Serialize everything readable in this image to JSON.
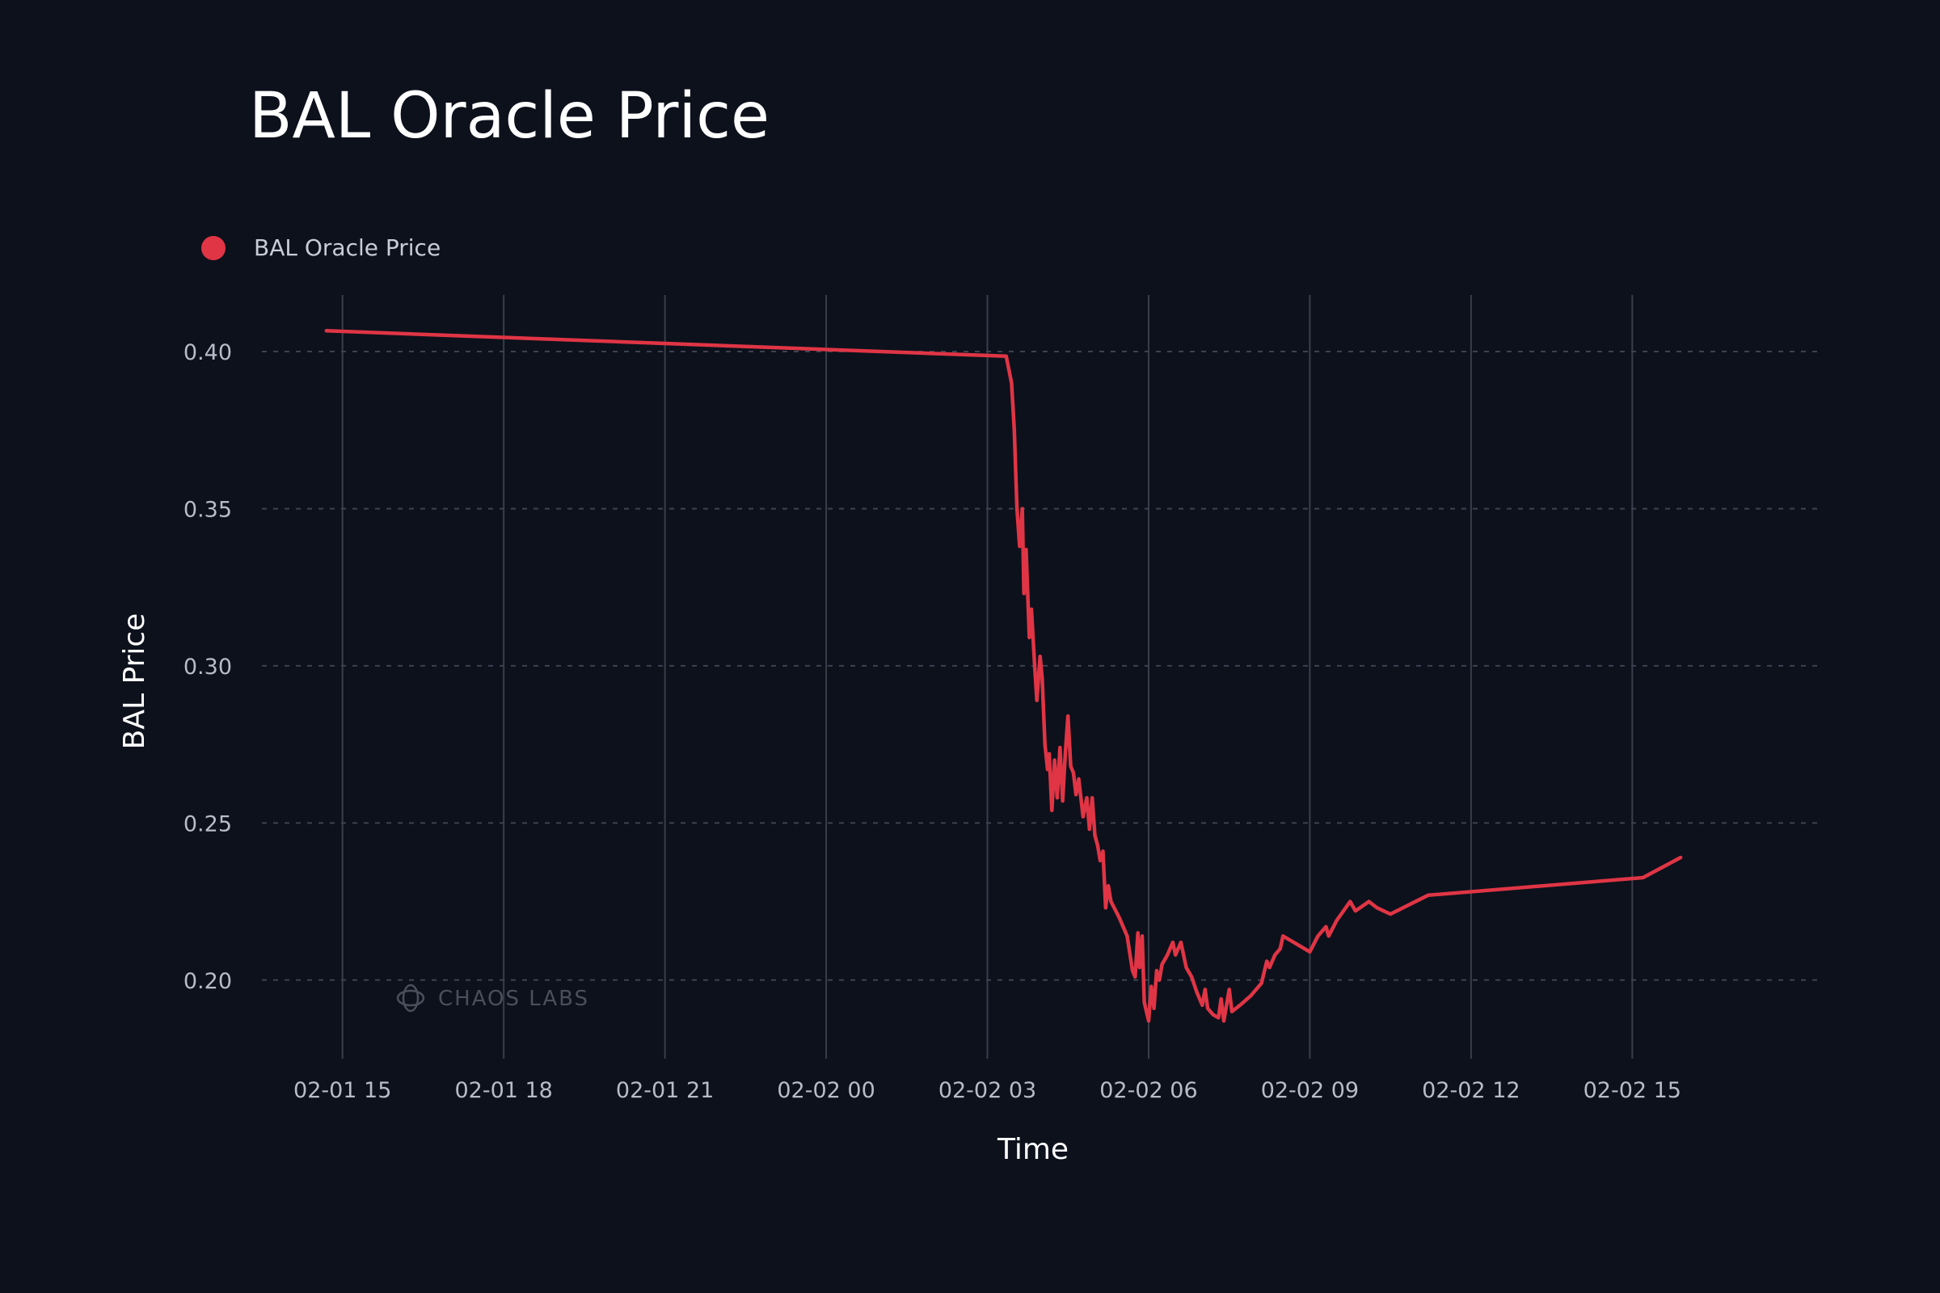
{
  "chart_data": {
    "type": "line",
    "title": "BAL Oracle Price",
    "xlabel": "Time",
    "ylabel": "BAL Price",
    "legend": {
      "position": "top-left",
      "entries": [
        "BAL Oracle Price"
      ]
    },
    "grid": {
      "x": "solid",
      "y": "dashed"
    },
    "x_unit": "hours since 2025-02-01 00:00",
    "xlim": [
      13.5,
      42.5
    ],
    "ylim": [
      0.175,
      0.418
    ],
    "x_ticks": [
      {
        "value": 15,
        "label": "02-01 15"
      },
      {
        "value": 18,
        "label": "02-01 18"
      },
      {
        "value": 21,
        "label": "02-01 21"
      },
      {
        "value": 24,
        "label": "02-02 00"
      },
      {
        "value": 27,
        "label": "02-02 03"
      },
      {
        "value": 30,
        "label": "02-02 06"
      },
      {
        "value": 33,
        "label": "02-02 09"
      },
      {
        "value": 36,
        "label": "02-02 12"
      },
      {
        "value": 39,
        "label": "02-02 15"
      }
    ],
    "y_ticks": [
      {
        "value": 0.2,
        "label": "0.20"
      },
      {
        "value": 0.25,
        "label": "0.25"
      },
      {
        "value": 0.3,
        "label": "0.30"
      },
      {
        "value": 0.35,
        "label": "0.35"
      },
      {
        "value": 0.4,
        "label": "0.40"
      }
    ],
    "series": [
      {
        "name": "BAL Oracle Price",
        "color": "#e03545",
        "points": [
          [
            14.7,
            0.4066
          ],
          [
            27.35,
            0.3985
          ],
          [
            27.45,
            0.39
          ],
          [
            27.5,
            0.375
          ],
          [
            27.55,
            0.35
          ],
          [
            27.6,
            0.338
          ],
          [
            27.65,
            0.35
          ],
          [
            27.68,
            0.323
          ],
          [
            27.72,
            0.337
          ],
          [
            27.78,
            0.309
          ],
          [
            27.82,
            0.318
          ],
          [
            27.88,
            0.3
          ],
          [
            27.92,
            0.289
          ],
          [
            27.98,
            0.303
          ],
          [
            28.02,
            0.296
          ],
          [
            28.07,
            0.275
          ],
          [
            28.12,
            0.267
          ],
          [
            28.15,
            0.272
          ],
          [
            28.2,
            0.254
          ],
          [
            28.25,
            0.27
          ],
          [
            28.3,
            0.258
          ],
          [
            28.35,
            0.274
          ],
          [
            28.4,
            0.257
          ],
          [
            28.45,
            0.272
          ],
          [
            28.5,
            0.284
          ],
          [
            28.55,
            0.268
          ],
          [
            28.6,
            0.266
          ],
          [
            28.65,
            0.259
          ],
          [
            28.7,
            0.264
          ],
          [
            28.78,
            0.252
          ],
          [
            28.85,
            0.258
          ],
          [
            28.9,
            0.248
          ],
          [
            28.95,
            0.258
          ],
          [
            29.0,
            0.246
          ],
          [
            29.05,
            0.243
          ],
          [
            29.1,
            0.238
          ],
          [
            29.15,
            0.241
          ],
          [
            29.2,
            0.223
          ],
          [
            29.25,
            0.23
          ],
          [
            29.3,
            0.225
          ],
          [
            29.45,
            0.22
          ],
          [
            29.6,
            0.214
          ],
          [
            29.7,
            0.203
          ],
          [
            29.75,
            0.201
          ],
          [
            29.8,
            0.215
          ],
          [
            29.83,
            0.204
          ],
          [
            29.88,
            0.214
          ],
          [
            29.92,
            0.193
          ],
          [
            30.0,
            0.187
          ],
          [
            30.05,
            0.198
          ],
          [
            30.1,
            0.191
          ],
          [
            30.15,
            0.203
          ],
          [
            30.2,
            0.2
          ],
          [
            30.25,
            0.205
          ],
          [
            30.35,
            0.208
          ],
          [
            30.45,
            0.212
          ],
          [
            30.5,
            0.208
          ],
          [
            30.6,
            0.212
          ],
          [
            30.7,
            0.204
          ],
          [
            30.8,
            0.201
          ],
          [
            30.9,
            0.196
          ],
          [
            31.0,
            0.192
          ],
          [
            31.05,
            0.197
          ],
          [
            31.1,
            0.191
          ],
          [
            31.2,
            0.189
          ],
          [
            31.3,
            0.188
          ],
          [
            31.35,
            0.194
          ],
          [
            31.4,
            0.187
          ],
          [
            31.5,
            0.197
          ],
          [
            31.55,
            0.19
          ],
          [
            31.7,
            0.192
          ],
          [
            31.9,
            0.195
          ],
          [
            32.1,
            0.199
          ],
          [
            32.2,
            0.206
          ],
          [
            32.25,
            0.204
          ],
          [
            32.35,
            0.208
          ],
          [
            32.45,
            0.21
          ],
          [
            32.5,
            0.214
          ],
          [
            32.7,
            0.212
          ],
          [
            32.9,
            0.21
          ],
          [
            33.0,
            0.209
          ],
          [
            33.15,
            0.214
          ],
          [
            33.3,
            0.217
          ],
          [
            33.35,
            0.214
          ],
          [
            33.5,
            0.219
          ],
          [
            33.75,
            0.225
          ],
          [
            33.85,
            0.222
          ],
          [
            34.1,
            0.225
          ],
          [
            34.25,
            0.223
          ],
          [
            34.5,
            0.221
          ],
          [
            35.2,
            0.227
          ],
          [
            39.2,
            0.2326
          ],
          [
            39.9,
            0.239
          ]
        ]
      }
    ],
    "watermark": "CHAOS LABS"
  }
}
